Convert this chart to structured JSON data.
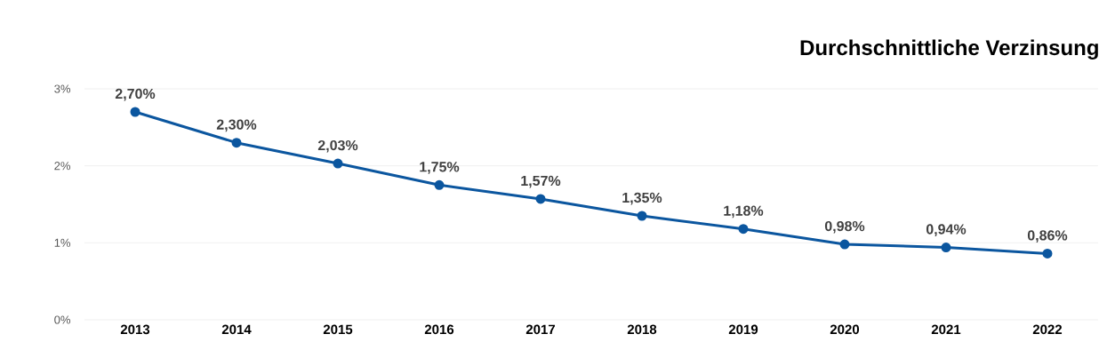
{
  "chart_data": {
    "type": "line",
    "title": "Durchschnittliche Verzinsung",
    "categories": [
      "2013",
      "2014",
      "2015",
      "2016",
      "2017",
      "2018",
      "2019",
      "2020",
      "2021",
      "2022"
    ],
    "values": [
      2.7,
      2.3,
      2.03,
      1.75,
      1.57,
      1.35,
      1.18,
      0.98,
      0.94,
      0.86
    ],
    "value_labels": [
      "2,70%",
      "2,30%",
      "2,03%",
      "1,75%",
      "1,57%",
      "1,35%",
      "1,18%",
      "0,98%",
      "0,94%",
      "0,86%"
    ],
    "color": "#0b569f",
    "marker": "circle",
    "line_style": "solid",
    "ylim": [
      0,
      3
    ],
    "yticks": [
      {
        "value": 0,
        "label": "0%"
      },
      {
        "value": 1,
        "label": "1%"
      },
      {
        "value": 2,
        "label": "2%"
      },
      {
        "value": 3,
        "label": "3%"
      }
    ],
    "grid": "y"
  }
}
